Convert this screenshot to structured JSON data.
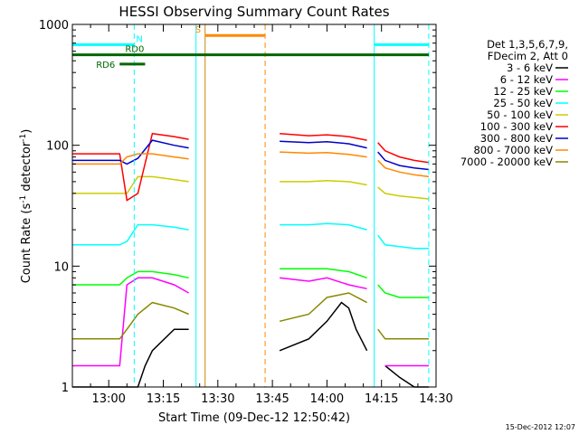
{
  "chart_data": {
    "type": "line",
    "title": "HESSI Observing Summary Count Rates",
    "xlabel": "Start Time (09-Dec-12 12:50:42)",
    "ylabel_main": "Count Rate (s",
    "ylabel_sup1": "-1",
    "ylabel_mid": " detector",
    "ylabel_sup2": "-1",
    "ylabel_end": ")",
    "yscale": "log",
    "ylim": [
      1,
      1000
    ],
    "xlim_minutes": [
      -10,
      90
    ],
    "x_ticks": [
      {
        "m": 0,
        "label": "13:00"
      },
      {
        "m": 15,
        "label": "13:15"
      },
      {
        "m": 30,
        "label": "13:30"
      },
      {
        "m": 45,
        "label": "13:45"
      },
      {
        "m": 60,
        "label": "14:00"
      },
      {
        "m": 75,
        "label": "14:15"
      },
      {
        "m": 90,
        "label": "14:30"
      }
    ],
    "y_ticks": [
      {
        "v": 1,
        "label": "1"
      },
      {
        "v": 10,
        "label": "10"
      },
      {
        "v": 100,
        "label": "100"
      },
      {
        "v": 1000,
        "label": "1000"
      }
    ],
    "legend_header": [
      "Det 1,3,5,6,7,9,",
      "FDecim 2, Att 0"
    ],
    "legend_position": "right",
    "series": [
      {
        "name": "3 - 6 keV",
        "color": "#000000",
        "segments": [
          {
            "x": [
              -10,
              0,
              5,
              8,
              10,
              12,
              18,
              22
            ],
            "y": [
              1,
              1,
              1,
              1,
              1.5,
              2,
              3,
              3
            ]
          },
          {
            "x": [
              47,
              55,
              60,
              64,
              66,
              68,
              71
            ],
            "y": [
              2,
              2.5,
              3.5,
              5,
              4.5,
              3,
              2
            ]
          },
          {
            "x": [
              76,
              80,
              84,
              88
            ],
            "y": [
              1.5,
              1.2,
              1,
              1
            ]
          }
        ]
      },
      {
        "name": "6 - 12 keV",
        "color": "#ff00ff",
        "segments": [
          {
            "x": [
              -10,
              0,
              3,
              5,
              8,
              12,
              18,
              22
            ],
            "y": [
              1.5,
              1.5,
              1.5,
              7,
              8,
              8,
              7,
              6
            ]
          },
          {
            "x": [
              47,
              55,
              60,
              66,
              71
            ],
            "y": [
              8,
              7.5,
              8,
              7,
              6.5
            ]
          },
          {
            "x": [
              76,
              80,
              84,
              88
            ],
            "y": [
              1.5,
              1.5,
              1.5,
              1.5
            ]
          }
        ]
      },
      {
        "name": "12 - 25 keV",
        "color": "#00ff00",
        "segments": [
          {
            "x": [
              -10,
              0,
              3,
              5,
              8,
              12,
              18,
              22
            ],
            "y": [
              7,
              7,
              7,
              8,
              9,
              9,
              8.5,
              8
            ]
          },
          {
            "x": [
              47,
              55,
              60,
              66,
              71
            ],
            "y": [
              9.5,
              9.5,
              9.5,
              9,
              8
            ]
          },
          {
            "x": [
              74,
              76,
              80,
              84,
              88
            ],
            "y": [
              7,
              6,
              5.5,
              5.5,
              5.5
            ]
          }
        ]
      },
      {
        "name": "25 - 50 keV",
        "color": "#00ffff",
        "segments": [
          {
            "x": [
              -10,
              0,
              3,
              5,
              8,
              12,
              18,
              22
            ],
            "y": [
              15,
              15,
              15,
              16,
              22,
              22,
              21,
              20
            ]
          },
          {
            "x": [
              47,
              55,
              60,
              66,
              71
            ],
            "y": [
              22,
              22,
              22.5,
              22,
              20
            ]
          },
          {
            "x": [
              74,
              76,
              80,
              84,
              88
            ],
            "y": [
              18,
              15,
              14.5,
              14,
              14
            ]
          }
        ]
      },
      {
        "name": "50 - 100 keV",
        "color": "#cccc00",
        "segments": [
          {
            "x": [
              -10,
              0,
              3,
              5,
              8,
              12,
              18,
              22
            ],
            "y": [
              40,
              40,
              40,
              40,
              55,
              55,
              52,
              50
            ]
          },
          {
            "x": [
              47,
              55,
              60,
              66,
              71
            ],
            "y": [
              50,
              50,
              51,
              50,
              47
            ]
          },
          {
            "x": [
              74,
              76,
              80,
              84,
              88
            ],
            "y": [
              45,
              40,
              38,
              37,
              36
            ]
          }
        ]
      },
      {
        "name": "100 - 300 keV",
        "color": "#ff0000",
        "segments": [
          {
            "x": [
              -10,
              0,
              3,
              5,
              8,
              12,
              18,
              22
            ],
            "y": [
              85,
              85,
              85,
              35,
              40,
              125,
              118,
              112
            ]
          },
          {
            "x": [
              47,
              55,
              60,
              66,
              71
            ],
            "y": [
              125,
              120,
              122,
              118,
              110
            ]
          },
          {
            "x": [
              74,
              76,
              80,
              84,
              88
            ],
            "y": [
              105,
              90,
              80,
              75,
              72
            ]
          }
        ]
      },
      {
        "name": "300 - 800 keV",
        "color": "#0000cc",
        "segments": [
          {
            "x": [
              -10,
              0,
              3,
              5,
              8,
              12,
              18,
              22
            ],
            "y": [
              75,
              75,
              75,
              70,
              78,
              110,
              100,
              95
            ]
          },
          {
            "x": [
              47,
              55,
              60,
              66,
              71
            ],
            "y": [
              108,
              105,
              107,
              103,
              95
            ]
          },
          {
            "x": [
              74,
              76,
              80,
              84,
              88
            ],
            "y": [
              88,
              75,
              68,
              65,
              63
            ]
          }
        ]
      },
      {
        "name": "800 - 7000 keV",
        "color": "#ff8800",
        "segments": [
          {
            "x": [
              -10,
              0,
              3,
              5,
              8,
              12,
              18,
              22
            ],
            "y": [
              70,
              70,
              70,
              80,
              85,
              85,
              80,
              77
            ]
          },
          {
            "x": [
              47,
              55,
              60,
              66,
              71
            ],
            "y": [
              88,
              86,
              87,
              84,
              80
            ]
          },
          {
            "x": [
              74,
              76,
              80,
              84,
              88
            ],
            "y": [
              75,
              65,
              60,
              57,
              55
            ]
          }
        ]
      },
      {
        "name": "7000 - 20000 keV",
        "color": "#888800",
        "segments": [
          {
            "x": [
              -10,
              0,
              3,
              5,
              8,
              12,
              18,
              22
            ],
            "y": [
              2.5,
              2.5,
              2.5,
              3,
              4,
              5,
              4.5,
              4
            ]
          },
          {
            "x": [
              47,
              55,
              60,
              66,
              71
            ],
            "y": [
              3.5,
              4,
              5.5,
              6,
              5
            ]
          },
          {
            "x": [
              74,
              76,
              80,
              84,
              88
            ],
            "y": [
              3,
              2.5,
              2.5,
              2.5,
              2.5
            ]
          }
        ]
      }
    ],
    "vertical_markers": [
      {
        "m": -10,
        "color": "#00ffff",
        "style": "solid"
      },
      {
        "m": 7,
        "color": "#00ffff",
        "style": "dashed"
      },
      {
        "m": 24,
        "color": "#00ffff",
        "style": "solid"
      },
      {
        "m": 26.5,
        "color": "#cc8800",
        "style": "solid"
      },
      {
        "m": 43,
        "color": "#ff8800",
        "style": "dashed"
      },
      {
        "m": 73,
        "color": "#00ffff",
        "style": "solid"
      },
      {
        "m": 88,
        "color": "#00ffff",
        "style": "dashed"
      }
    ],
    "flag_bars": [
      {
        "name": "N",
        "label": "N",
        "color": "#00ffff",
        "y": 680,
        "ranges": [
          [
            -10,
            7
          ],
          [
            73,
            88
          ]
        ]
      },
      {
        "name": "S",
        "label": "S",
        "color": "#ff8800",
        "y": 810,
        "ranges": [
          [
            26.5,
            43
          ]
        ]
      },
      {
        "name": "RD0",
        "label": "RD0",
        "color": "#006600",
        "y": 560,
        "ranges": [
          [
            -10,
            88
          ]
        ]
      },
      {
        "name": "RD6",
        "label": "RD6",
        "color": "#006600",
        "y": 470,
        "ranges": [
          [
            3,
            10
          ]
        ]
      }
    ],
    "timestamp": "15-Dec-2012 12:07"
  }
}
